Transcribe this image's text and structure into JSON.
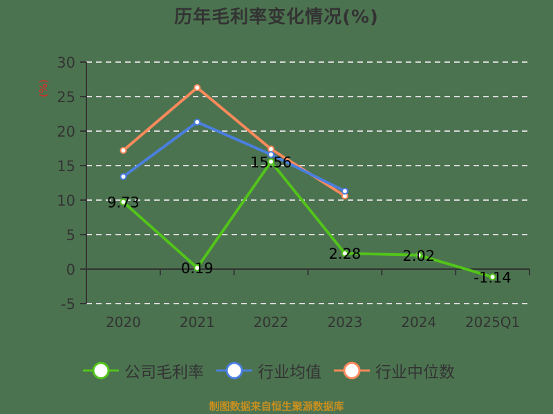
{
  "title": "历年毛利率变化情况(%)",
  "source": "制图数据来自恒生聚源数据库",
  "legend": [
    {
      "label": "公司毛利率",
      "color": "#52c41a"
    },
    {
      "label": "行业均值",
      "color": "#4a7fe0"
    },
    {
      "label": "行业中位数",
      "color": "#ff8a5c"
    }
  ],
  "chart_data": {
    "type": "line",
    "title": "历年毛利率变化情况(%)",
    "xlabel": "",
    "ylabel": "(%)",
    "categories": [
      "2020",
      "2021",
      "2022",
      "2023",
      "2024",
      "2025Q1"
    ],
    "ylim": [
      -5,
      30
    ],
    "yticks": [
      30,
      25,
      20,
      15,
      10,
      5,
      0,
      -5
    ],
    "grid": true,
    "grid_style": "dashed",
    "legend_position": "bottom",
    "series": [
      {
        "name": "公司毛利率",
        "color": "#52c41a",
        "values": [
          9.73,
          0.19,
          15.56,
          2.28,
          2.02,
          -1.14
        ],
        "data_labels": true
      },
      {
        "name": "行业均值",
        "color": "#4a7fe0",
        "values": [
          13.4,
          21.3,
          16.6,
          11.3,
          null,
          null
        ],
        "data_labels": false
      },
      {
        "name": "行业中位数",
        "color": "#ff8a5c",
        "values": [
          17.2,
          26.3,
          17.4,
          10.6,
          null,
          null
        ],
        "data_labels": false
      }
    ]
  }
}
